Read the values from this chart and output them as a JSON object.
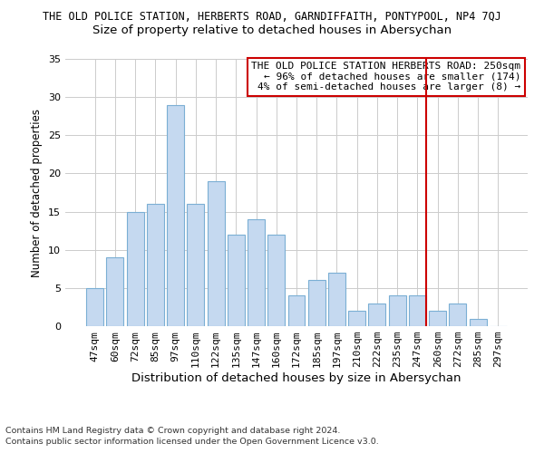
{
  "title": "THE OLD POLICE STATION, HERBERTS ROAD, GARNDIFFAITH, PONTYPOOL, NP4 7QJ",
  "subtitle": "Size of property relative to detached houses in Abersychan",
  "xlabel": "Distribution of detached houses by size in Abersychan",
  "ylabel": "Number of detached properties",
  "categories": [
    "47sqm",
    "60sqm",
    "72sqm",
    "85sqm",
    "97sqm",
    "110sqm",
    "122sqm",
    "135sqm",
    "147sqm",
    "160sqm",
    "172sqm",
    "185sqm",
    "197sqm",
    "210sqm",
    "222sqm",
    "235sqm",
    "247sqm",
    "260sqm",
    "272sqm",
    "285sqm",
    "297sqm"
  ],
  "values": [
    5,
    9,
    15,
    16,
    29,
    16,
    19,
    12,
    14,
    12,
    4,
    6,
    7,
    2,
    3,
    4,
    4,
    2,
    3,
    1,
    0
  ],
  "bar_color": "#c5d9f0",
  "bar_edgecolor": "#7bafd4",
  "vline_color": "#cc0000",
  "vline_idx": 16,
  "annotation_text": "THE OLD POLICE STATION HERBERTS ROAD: 250sqm\n← 96% of detached houses are smaller (174)\n4% of semi-detached houses are larger (8) →",
  "annotation_box_edgecolor": "#cc0000",
  "ylim": [
    0,
    35
  ],
  "yticks": [
    0,
    5,
    10,
    15,
    20,
    25,
    30,
    35
  ],
  "footer1": "Contains HM Land Registry data © Crown copyright and database right 2024.",
  "footer2": "Contains public sector information licensed under the Open Government Licence v3.0.",
  "background_color": "#ffffff",
  "grid_color": "#cccccc",
  "title_fontsize": 8.5,
  "subtitle_fontsize": 9.5,
  "ylabel_fontsize": 8.5,
  "xlabel_fontsize": 9.5,
  "tick_fontsize": 8.0,
  "footer_fontsize": 6.8,
  "annotation_fontsize": 8.0
}
